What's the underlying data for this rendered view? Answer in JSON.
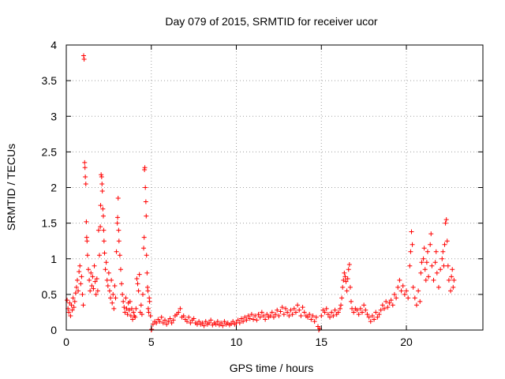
{
  "chart_data": {
    "type": "scatter",
    "title": "Day 079 of 2015, SRMTID for receiver ucor",
    "xlabel": "GPS time / hours",
    "ylabel": "SRMTID / TECUs",
    "xlim": [
      0,
      24.5
    ],
    "ylim": [
      0,
      4
    ],
    "xticks": [
      0,
      5,
      10,
      15,
      20
    ],
    "xtick_labels": [
      "0",
      "5",
      "10",
      "15",
      "20"
    ],
    "yticks": [
      0,
      0.5,
      1,
      1.5,
      2,
      2.5,
      3,
      3.5,
      4
    ],
    "ytick_labels": [
      "0",
      "0.5",
      "1",
      "1.5",
      "2",
      "2.5",
      "3",
      "3.5",
      "4"
    ],
    "grid": true,
    "marker": "+",
    "series": [
      {
        "name": "SRMTID",
        "color": "#ff0000",
        "points": [
          [
            0.05,
            0.42
          ],
          [
            0.1,
            0.3
          ],
          [
            0.15,
            0.25
          ],
          [
            0.2,
            0.38
          ],
          [
            0.25,
            0.2
          ],
          [
            0.3,
            0.35
          ],
          [
            0.35,
            0.28
          ],
          [
            0.4,
            0.45
          ],
          [
            0.45,
            0.32
          ],
          [
            0.5,
            0.4
          ],
          [
            0.55,
            0.52
          ],
          [
            0.6,
            0.6
          ],
          [
            0.65,
            0.7
          ],
          [
            0.7,
            0.55
          ],
          [
            0.75,
            0.82
          ],
          [
            0.8,
            0.9
          ],
          [
            0.85,
            0.65
          ],
          [
            0.9,
            0.75
          ],
          [
            0.95,
            0.5
          ],
          [
            1.0,
            0.35
          ],
          [
            1.02,
            3.85
          ],
          [
            1.05,
            3.8
          ],
          [
            1.08,
            2.35
          ],
          [
            1.1,
            2.28
          ],
          [
            1.12,
            2.15
          ],
          [
            1.15,
            2.05
          ],
          [
            1.18,
            1.52
          ],
          [
            1.2,
            1.3
          ],
          [
            1.22,
            1.25
          ],
          [
            1.25,
            1.05
          ],
          [
            1.3,
            0.85
          ],
          [
            1.35,
            0.7
          ],
          [
            1.4,
            0.55
          ],
          [
            1.45,
            0.8
          ],
          [
            1.5,
            0.62
          ],
          [
            1.55,
            0.75
          ],
          [
            1.6,
            0.58
          ],
          [
            1.65,
            0.9
          ],
          [
            1.7,
            0.68
          ],
          [
            1.75,
            0.5
          ],
          [
            1.8,
            0.72
          ],
          [
            1.85,
            0.55
          ],
          [
            1.9,
            1.4
          ],
          [
            1.95,
            1.05
          ],
          [
            2.0,
            1.45
          ],
          [
            2.02,
            1.75
          ],
          [
            2.05,
            2.18
          ],
          [
            2.08,
            2.15
          ],
          [
            2.1,
            2.05
          ],
          [
            2.12,
            1.95
          ],
          [
            2.15,
            1.7
          ],
          [
            2.18,
            1.6
          ],
          [
            2.2,
            1.4
          ],
          [
            2.22,
            1.25
          ],
          [
            2.25,
            1.08
          ],
          [
            2.3,
            0.85
          ],
          [
            2.35,
            0.95
          ],
          [
            2.4,
            0.7
          ],
          [
            2.45,
            0.62
          ],
          [
            2.5,
            0.8
          ],
          [
            2.55,
            0.55
          ],
          [
            2.6,
            0.45
          ],
          [
            2.65,
            0.7
          ],
          [
            2.7,
            0.38
          ],
          [
            2.75,
            0.5
          ],
          [
            2.8,
            0.3
          ],
          [
            2.85,
            0.62
          ],
          [
            2.9,
            0.45
          ],
          [
            2.95,
            1.1
          ],
          [
            3.0,
            1.5
          ],
          [
            3.02,
            1.58
          ],
          [
            3.05,
            1.85
          ],
          [
            3.08,
            1.4
          ],
          [
            3.1,
            1.25
          ],
          [
            3.15,
            1.05
          ],
          [
            3.2,
            0.85
          ],
          [
            3.25,
            0.65
          ],
          [
            3.3,
            0.5
          ],
          [
            3.35,
            0.4
          ],
          [
            3.4,
            0.32
          ],
          [
            3.45,
            0.25
          ],
          [
            3.5,
            0.45
          ],
          [
            3.55,
            0.3
          ],
          [
            3.6,
            0.22
          ],
          [
            3.65,
            0.38
          ],
          [
            3.7,
            0.28
          ],
          [
            3.75,
            0.4
          ],
          [
            3.8,
            0.2
          ],
          [
            3.85,
            0.3
          ],
          [
            3.9,
            0.15
          ],
          [
            3.95,
            0.25
          ],
          [
            4.0,
            0.2
          ],
          [
            4.05,
            0.18
          ],
          [
            4.1,
            0.3
          ],
          [
            4.15,
            0.72
          ],
          [
            4.2,
            0.65
          ],
          [
            4.25,
            0.55
          ],
          [
            4.3,
            0.78
          ],
          [
            4.35,
            0.25
          ],
          [
            4.4,
            0.35
          ],
          [
            4.45,
            0.22
          ],
          [
            4.5,
            0.5
          ],
          [
            4.55,
            1.15
          ],
          [
            4.58,
            1.3
          ],
          [
            4.6,
            2.25
          ],
          [
            4.62,
            2.28
          ],
          [
            4.65,
            2.0
          ],
          [
            4.68,
            1.8
          ],
          [
            4.7,
            1.6
          ],
          [
            4.72,
            1.05
          ],
          [
            4.75,
            0.8
          ],
          [
            4.78,
            0.6
          ],
          [
            4.8,
            0.55
          ],
          [
            4.82,
            0.3
          ],
          [
            4.85,
            0.25
          ],
          [
            4.88,
            0.45
          ],
          [
            4.9,
            0.4
          ],
          [
            4.95,
            0.2
          ],
          [
            5.0,
            0.0
          ],
          [
            5.02,
            0.01
          ],
          [
            5.1,
            0.08
          ],
          [
            5.2,
            0.12
          ],
          [
            5.3,
            0.1
          ],
          [
            5.4,
            0.15
          ],
          [
            5.5,
            0.12
          ],
          [
            5.6,
            0.18
          ],
          [
            5.7,
            0.1
          ],
          [
            5.8,
            0.14
          ],
          [
            5.9,
            0.08
          ],
          [
            6.0,
            0.12
          ],
          [
            6.1,
            0.16
          ],
          [
            6.2,
            0.1
          ],
          [
            6.3,
            0.14
          ],
          [
            6.4,
            0.2
          ],
          [
            6.5,
            0.22
          ],
          [
            6.6,
            0.25
          ],
          [
            6.7,
            0.3
          ],
          [
            6.8,
            0.18
          ],
          [
            6.9,
            0.2
          ],
          [
            7.0,
            0.15
          ],
          [
            7.1,
            0.12
          ],
          [
            7.2,
            0.18
          ],
          [
            7.3,
            0.1
          ],
          [
            7.4,
            0.14
          ],
          [
            7.5,
            0.16
          ],
          [
            7.6,
            0.1
          ],
          [
            7.7,
            0.08
          ],
          [
            7.8,
            0.12
          ],
          [
            7.9,
            0.08
          ],
          [
            8.0,
            0.1
          ],
          [
            8.1,
            0.06
          ],
          [
            8.2,
            0.12
          ],
          [
            8.3,
            0.08
          ],
          [
            8.4,
            0.1
          ],
          [
            8.5,
            0.14
          ],
          [
            8.6,
            0.07
          ],
          [
            8.7,
            0.1
          ],
          [
            8.8,
            0.08
          ],
          [
            8.9,
            0.12
          ],
          [
            9.0,
            0.07
          ],
          [
            9.1,
            0.1
          ],
          [
            9.2,
            0.06
          ],
          [
            9.3,
            0.12
          ],
          [
            9.4,
            0.08
          ],
          [
            9.5,
            0.1
          ],
          [
            9.6,
            0.07
          ],
          [
            9.7,
            0.09
          ],
          [
            9.8,
            0.12
          ],
          [
            9.9,
            0.08
          ],
          [
            10.0,
            0.1
          ],
          [
            10.1,
            0.14
          ],
          [
            10.2,
            0.1
          ],
          [
            10.3,
            0.16
          ],
          [
            10.4,
            0.12
          ],
          [
            10.5,
            0.18
          ],
          [
            10.6,
            0.14
          ],
          [
            10.7,
            0.2
          ],
          [
            10.8,
            0.16
          ],
          [
            10.9,
            0.22
          ],
          [
            11.0,
            0.15
          ],
          [
            11.1,
            0.2
          ],
          [
            11.2,
            0.14
          ],
          [
            11.3,
            0.22
          ],
          [
            11.4,
            0.18
          ],
          [
            11.5,
            0.25
          ],
          [
            11.6,
            0.2
          ],
          [
            11.7,
            0.15
          ],
          [
            11.8,
            0.22
          ],
          [
            11.9,
            0.18
          ],
          [
            12.0,
            0.2
          ],
          [
            12.1,
            0.25
          ],
          [
            12.2,
            0.18
          ],
          [
            12.3,
            0.22
          ],
          [
            12.4,
            0.28
          ],
          [
            12.5,
            0.2
          ],
          [
            12.6,
            0.26
          ],
          [
            12.7,
            0.32
          ],
          [
            12.8,
            0.22
          ],
          [
            12.9,
            0.3
          ],
          [
            13.0,
            0.25
          ],
          [
            13.1,
            0.2
          ],
          [
            13.2,
            0.28
          ],
          [
            13.3,
            0.22
          ],
          [
            13.4,
            0.3
          ],
          [
            13.5,
            0.25
          ],
          [
            13.6,
            0.35
          ],
          [
            13.7,
            0.28
          ],
          [
            13.8,
            0.2
          ],
          [
            13.9,
            0.32
          ],
          [
            14.0,
            0.25
          ],
          [
            14.1,
            0.2
          ],
          [
            14.2,
            0.18
          ],
          [
            14.3,
            0.22
          ],
          [
            14.4,
            0.15
          ],
          [
            14.5,
            0.2
          ],
          [
            14.6,
            0.12
          ],
          [
            14.7,
            0.18
          ],
          [
            14.8,
            0.05
          ],
          [
            14.85,
            0.0
          ],
          [
            14.9,
            0.02
          ],
          [
            15.0,
            0.2
          ],
          [
            15.1,
            0.28
          ],
          [
            15.2,
            0.25
          ],
          [
            15.3,
            0.3
          ],
          [
            15.4,
            0.22
          ],
          [
            15.5,
            0.18
          ],
          [
            15.6,
            0.25
          ],
          [
            15.7,
            0.2
          ],
          [
            15.8,
            0.28
          ],
          [
            15.9,
            0.22
          ],
          [
            16.0,
            0.25
          ],
          [
            16.1,
            0.3
          ],
          [
            16.15,
            0.35
          ],
          [
            16.2,
            0.45
          ],
          [
            16.25,
            0.6
          ],
          [
            16.3,
            0.7
          ],
          [
            16.35,
            0.8
          ],
          [
            16.4,
            0.75
          ],
          [
            16.45,
            0.68
          ],
          [
            16.5,
            0.55
          ],
          [
            16.55,
            0.72
          ],
          [
            16.6,
            0.85
          ],
          [
            16.65,
            0.92
          ],
          [
            16.7,
            0.6
          ],
          [
            16.75,
            0.4
          ],
          [
            16.8,
            0.3
          ],
          [
            16.9,
            0.25
          ],
          [
            17.0,
            0.3
          ],
          [
            17.1,
            0.28
          ],
          [
            17.2,
            0.22
          ],
          [
            17.3,
            0.3
          ],
          [
            17.4,
            0.25
          ],
          [
            17.5,
            0.35
          ],
          [
            17.6,
            0.28
          ],
          [
            17.7,
            0.22
          ],
          [
            17.8,
            0.18
          ],
          [
            17.9,
            0.12
          ],
          [
            18.0,
            0.2
          ],
          [
            18.1,
            0.15
          ],
          [
            18.2,
            0.25
          ],
          [
            18.3,
            0.18
          ],
          [
            18.4,
            0.22
          ],
          [
            18.5,
            0.28
          ],
          [
            18.6,
            0.35
          ],
          [
            18.7,
            0.3
          ],
          [
            18.8,
            0.4
          ],
          [
            18.9,
            0.32
          ],
          [
            19.0,
            0.38
          ],
          [
            19.1,
            0.42
          ],
          [
            19.2,
            0.35
          ],
          [
            19.3,
            0.5
          ],
          [
            19.4,
            0.45
          ],
          [
            19.5,
            0.6
          ],
          [
            19.6,
            0.7
          ],
          [
            19.7,
            0.55
          ],
          [
            19.8,
            0.62
          ],
          [
            19.9,
            0.5
          ],
          [
            20.0,
            0.55
          ],
          [
            20.1,
            0.45
          ],
          [
            20.2,
            0.9
          ],
          [
            20.25,
            1.1
          ],
          [
            20.3,
            1.38
          ],
          [
            20.35,
            1.2
          ],
          [
            20.4,
            0.6
          ],
          [
            20.5,
            0.45
          ],
          [
            20.6,
            0.35
          ],
          [
            20.7,
            0.55
          ],
          [
            20.8,
            0.4
          ],
          [
            20.85,
            0.8
          ],
          [
            20.9,
            0.95
          ],
          [
            21.0,
            1.0
          ],
          [
            21.05,
            1.15
          ],
          [
            21.1,
            0.85
          ],
          [
            21.15,
            0.7
          ],
          [
            21.2,
            0.95
          ],
          [
            21.25,
            1.1
          ],
          [
            21.3,
            0.75
          ],
          [
            21.4,
            1.2
          ],
          [
            21.45,
            1.35
          ],
          [
            21.5,
            0.9
          ],
          [
            21.6,
            0.7
          ],
          [
            21.7,
            0.95
          ],
          [
            21.75,
            1.1
          ],
          [
            21.8,
            0.8
          ],
          [
            21.9,
            0.6
          ],
          [
            22.0,
            0.85
          ],
          [
            22.1,
            1.0
          ],
          [
            22.15,
            1.1
          ],
          [
            22.2,
            0.9
          ],
          [
            22.25,
            1.2
          ],
          [
            22.3,
            1.5
          ],
          [
            22.35,
            1.55
          ],
          [
            22.4,
            1.25
          ],
          [
            22.45,
            0.9
          ],
          [
            22.5,
            0.7
          ],
          [
            22.6,
            0.55
          ],
          [
            22.65,
            0.75
          ],
          [
            22.7,
            0.85
          ],
          [
            22.75,
            0.6
          ],
          [
            22.8,
            0.7
          ]
        ]
      }
    ]
  }
}
